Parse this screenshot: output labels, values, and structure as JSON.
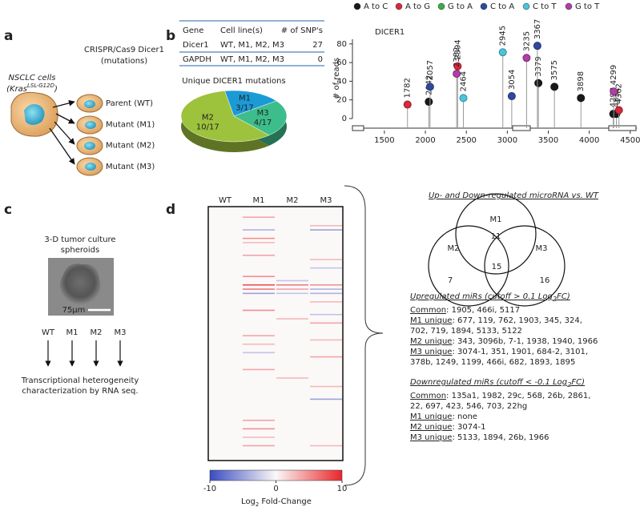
{
  "panel_labels": [
    "a",
    "b",
    "c",
    "d"
  ],
  "panel_a": {
    "title": "CRISPR/Cas9 Dicer1",
    "subtitle": "(mutations)",
    "source": "NSCLC cells",
    "source_gene": [
      "(Kras",
      "LSL-G12D",
      ")"
    ],
    "lines": [
      "Parent (WT)",
      "Mutant (M1)",
      "Mutant (M2)",
      "Mutant (M3)"
    ]
  },
  "snp_table": {
    "header": [
      "Gene",
      "Cell line(s)",
      "# of SNP's"
    ],
    "rows": [
      [
        "Dicer1",
        "WT, M1, M2, M3",
        27
      ],
      [
        "GAPDH",
        "WT, M1, M2, M3",
        0
      ]
    ]
  },
  "chart_data": [
    {
      "type": "pie",
      "title": "Unique DICER1 mutations",
      "categories": [
        "M1",
        "M3",
        "M2"
      ],
      "values": [
        3,
        4,
        10
      ],
      "value_labels": [
        "3/17",
        "4/17",
        "10/17"
      ],
      "colors": [
        "#1c9ad6",
        "#3dbd8c",
        "#9dc23c"
      ]
    },
    {
      "type": "lollipop",
      "title": "DICER1",
      "ylabel": "# of reads",
      "xlim": [
        1110,
        4580
      ],
      "ylim": [
        0,
        85
      ],
      "xticks": [
        1500,
        2000,
        2500,
        3000,
        3500,
        4000,
        4500
      ],
      "yticks": [
        0,
        20,
        40,
        60,
        80
      ],
      "series": [
        {
          "name": "A to C",
          "color": "#1a1a1a",
          "x": [
            2042,
            3379,
            3575,
            3898,
            4293,
            4331
          ],
          "values": [
            18,
            38,
            34,
            22,
            5,
            5
          ]
        },
        {
          "name": "A to G",
          "color": "#d8283a",
          "x": [
            1782,
            2394,
            4362
          ],
          "values": [
            15,
            56,
            9
          ]
        },
        {
          "name": "G to A",
          "color": "#3cab48",
          "x": [],
          "values": []
        },
        {
          "name": "C to A",
          "color": "#2f4a9c",
          "x": [
            2057,
            3054,
            3367
          ],
          "values": [
            34,
            24,
            78
          ]
        },
        {
          "name": "C to T",
          "color": "#4cc3da",
          "x": [
            2464,
            2945
          ],
          "values": [
            22,
            71
          ]
        },
        {
          "name": "G to T",
          "color": "#b03ea6",
          "x": [
            2382,
            3235,
            4299
          ],
          "values": [
            48,
            65,
            29
          ]
        }
      ]
    },
    {
      "type": "heatmap",
      "columns": [
        "WT",
        "M1",
        "M2",
        "M3"
      ],
      "zlim": [
        -10,
        10
      ],
      "zticks": [
        -10,
        0,
        10
      ],
      "colorbar_label": [
        "Log",
        "2",
        "Fold-Change"
      ],
      "colors": {
        "low": "#3b4cc0",
        "mid": "#fbf8f8",
        "high": "#e8262a"
      },
      "values": [
        [
          0,
          0,
          0,
          0
        ],
        [
          0,
          0,
          0,
          0
        ],
        [
          0,
          4,
          0,
          0
        ],
        [
          0,
          0,
          0,
          0
        ],
        [
          0,
          0,
          0,
          3
        ],
        [
          0,
          -4,
          0,
          -5
        ],
        [
          0,
          0,
          0,
          0
        ],
        [
          0,
          5,
          0,
          0
        ],
        [
          0,
          3,
          0,
          0
        ],
        [
          0,
          0,
          0,
          0
        ],
        [
          0,
          0,
          0,
          0
        ],
        [
          0,
          4,
          0,
          0
        ],
        [
          0,
          0,
          0,
          3
        ],
        [
          0,
          0,
          0,
          0
        ],
        [
          0,
          0,
          0,
          -3
        ],
        [
          0,
          0,
          0,
          0
        ],
        [
          0,
          5,
          0,
          0
        ],
        [
          0,
          0,
          -3,
          0
        ],
        [
          0,
          8,
          6,
          5
        ],
        [
          0,
          6,
          4,
          -4
        ],
        [
          0,
          -5,
          -3,
          -4
        ],
        [
          0,
          0,
          0,
          0
        ],
        [
          0,
          0,
          0,
          3
        ],
        [
          0,
          0,
          0,
          0
        ],
        [
          0,
          5,
          0,
          0
        ],
        [
          0,
          0,
          0,
          -3
        ],
        [
          0,
          0,
          3,
          0
        ],
        [
          0,
          0,
          0,
          4
        ],
        [
          0,
          0,
          0,
          0
        ],
        [
          0,
          0,
          0,
          0
        ],
        [
          0,
          4,
          0,
          0
        ],
        [
          0,
          0,
          0,
          3
        ],
        [
          0,
          3,
          0,
          0
        ],
        [
          0,
          0,
          0,
          0
        ],
        [
          0,
          -3,
          0,
          0
        ],
        [
          0,
          0,
          0,
          4
        ],
        [
          0,
          0,
          0,
          0
        ],
        [
          0,
          0,
          0,
          0
        ],
        [
          0,
          4,
          0,
          0
        ],
        [
          0,
          0,
          0,
          0
        ],
        [
          0,
          0,
          3,
          0
        ],
        [
          0,
          0,
          0,
          0
        ],
        [
          0,
          0,
          0,
          3
        ],
        [
          0,
          0,
          0,
          0
        ],
        [
          0,
          0,
          0,
          0
        ],
        [
          0,
          0,
          0,
          -5
        ],
        [
          0,
          0,
          0,
          0
        ],
        [
          0,
          0,
          0,
          0
        ],
        [
          0,
          0,
          0,
          0
        ],
        [
          0,
          0,
          0,
          0
        ],
        [
          0,
          4,
          0,
          0
        ],
        [
          0,
          0,
          0,
          0
        ],
        [
          0,
          5,
          0,
          0
        ],
        [
          0,
          0,
          0,
          0
        ],
        [
          0,
          3,
          0,
          0
        ],
        [
          0,
          0,
          0,
          0
        ],
        [
          0,
          4,
          0,
          3
        ],
        [
          0,
          0,
          0,
          0
        ],
        [
          0,
          0,
          0,
          0
        ],
        [
          0,
          0,
          0,
          0
        ]
      ]
    }
  ],
  "panel_c": {
    "title": [
      "3-D tumor culture",
      "spheroids"
    ],
    "scale_bar": "75µm",
    "conditions": [
      "WT",
      "M1",
      "M2",
      "M3"
    ],
    "caption": [
      "Transcriptional heterogeneity",
      "characterization by RNA seq."
    ]
  },
  "venn": {
    "title": "Up- and Down-regulated microRNA vs. WT",
    "sets": [
      {
        "name": "M1",
        "count": 11
      },
      {
        "name": "M2",
        "count": 7
      },
      {
        "name": "M3",
        "count": 16
      }
    ],
    "intersection": 15
  },
  "mirs": [
    {
      "title": [
        "Upregulated miRs (cutoff > 0.1 Log",
        "2",
        "FC)"
      ],
      "groups": [
        {
          "label": "Common",
          "items": ": 1905, 466i, 5117"
        },
        {
          "label": "M1 unique",
          "items": ": 677, 119, 762, 1903, 345, 324, 702, 719, 1894, 5133, 5122"
        },
        {
          "label": "M2 unique",
          "items": ": 343, 3096b, 7-1, 1938, 1940, 1966"
        },
        {
          "label": "M3 unique",
          "items": ": 3074-1, 351, 1901, 684-2, 3101, 378b, 1249, 1199, 466i, 682, 1893, 1895"
        }
      ]
    },
    {
      "title": [
        "Downregulated miRs (cutoff < -0.1 Log",
        "2",
        "FC)"
      ],
      "groups": [
        {
          "label": "Common",
          "items": ": 135a1, 1982, 29c, 568, 26b, 2861, 22, 697, 423, 546, 703, 22hg"
        },
        {
          "label": "M1 unique",
          "items": ": none"
        },
        {
          "label": "M2 unique",
          "items": ": 3074-1"
        },
        {
          "label": "M3 unique",
          "items": ": 5133, 1894, 26b, 1966"
        }
      ]
    }
  ]
}
